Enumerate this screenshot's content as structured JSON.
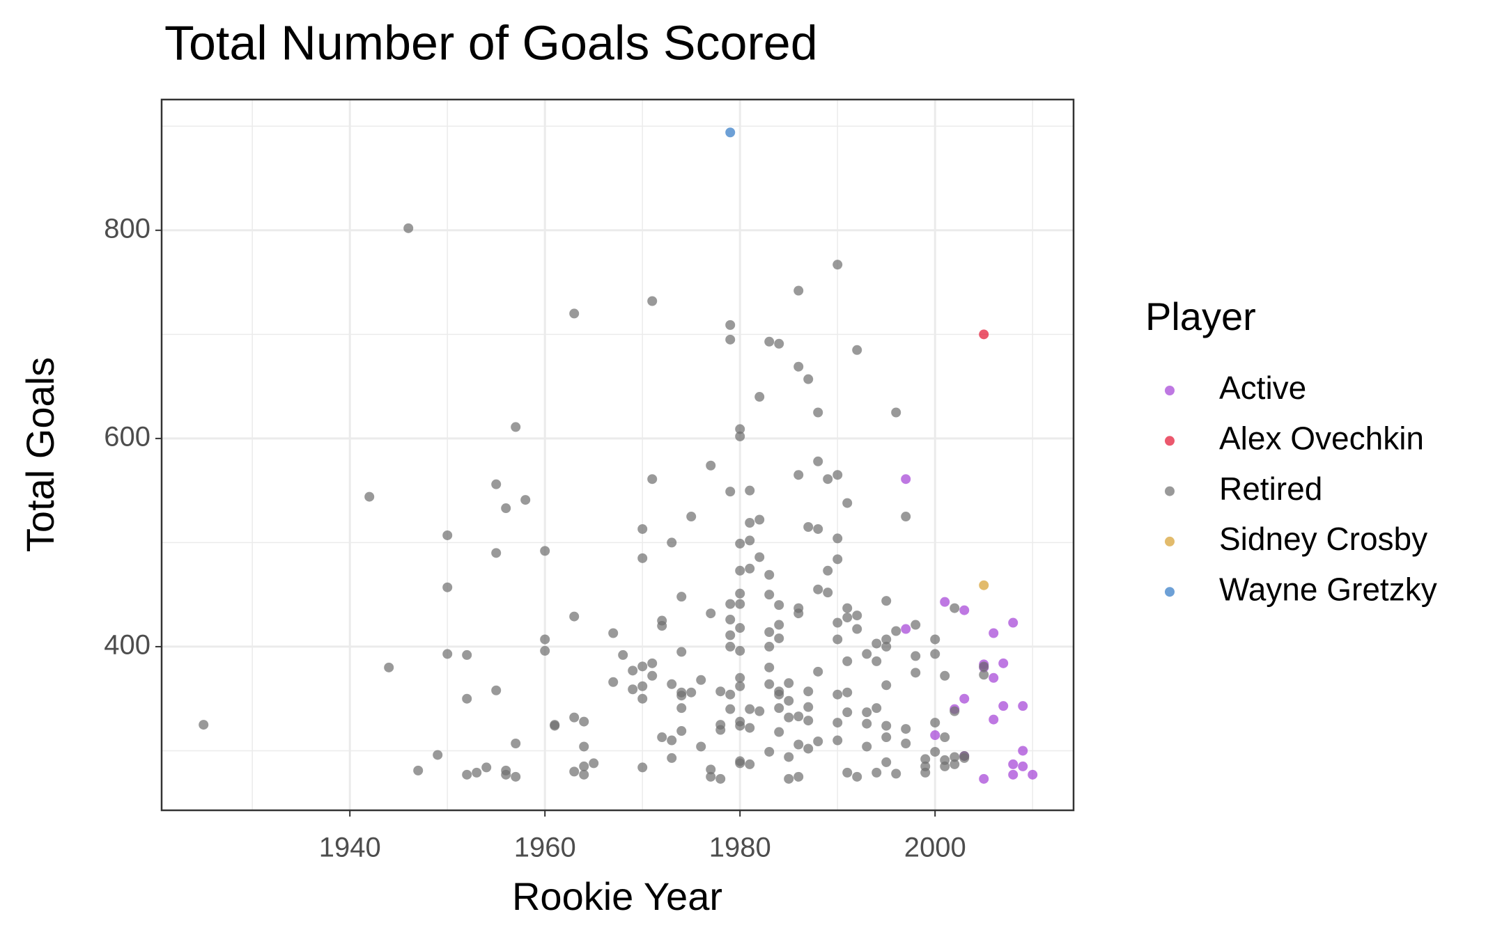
{
  "chart_data": {
    "type": "scatter",
    "title": "Total Number of Goals Scored",
    "x_label": "Rookie Year",
    "y_label": "Total Goals",
    "legend_title": "Player",
    "legend": "right",
    "grid": true,
    "xlim": [
      1920.7,
      2014.2
    ],
    "ylim": [
      242.8,
      925.6
    ],
    "xticks": [
      1940,
      1960,
      1980,
      2000
    ],
    "yticks": [
      400,
      600,
      800
    ],
    "x_minor_ticks": [
      1930,
      1950,
      1970,
      1990,
      2010
    ],
    "y_minor_ticks": [
      300,
      500,
      700,
      900
    ],
    "series": [
      {
        "name": "Active",
        "color": "#a33fd6",
        "x": [
          1997,
          1997,
          2001,
          2003,
          2000,
          2002,
          2003,
          2005,
          2005,
          2006,
          2006,
          2006,
          2007,
          2007,
          2008,
          2009,
          2009,
          2008,
          2008,
          2009,
          2010,
          2005,
          2003
        ],
        "y": [
          561,
          417,
          443,
          435,
          315,
          340,
          350,
          383,
          380,
          413,
          370,
          330,
          384,
          343,
          423,
          343,
          300,
          287,
          277,
          285,
          277,
          273,
          295
        ]
      },
      {
        "name": "Alex Ovechkin",
        "color": "#e3112f",
        "x": [
          2005
        ],
        "y": [
          700
        ]
      },
      {
        "name": "Retired",
        "color": "#6e6e6e",
        "x": [
          1925,
          1942,
          1944,
          1946,
          1947,
          1949,
          1950,
          1950,
          1950,
          1952,
          1952,
          1952,
          1953,
          1954,
          1955,
          1955,
          1955,
          1956,
          1956,
          1956,
          1957,
          1957,
          1957,
          1958,
          1960,
          1960,
          1960,
          1961,
          1961,
          1963,
          1963,
          1963,
          1963,
          1964,
          1964,
          1964,
          1964,
          1965,
          1967,
          1967,
          1968,
          1969,
          1969,
          1970,
          1970,
          1970,
          1970,
          1970,
          1970,
          1971,
          1971,
          1971,
          1971,
          1972,
          1972,
          1972,
          1973,
          1973,
          1973,
          1973,
          1974,
          1974,
          1974,
          1974,
          1974,
          1974,
          1975,
          1975,
          1976,
          1976,
          1977,
          1977,
          1977,
          1977,
          1978,
          1978,
          1978,
          1978,
          1979,
          1979,
          1979,
          1979,
          1979,
          1979,
          1979,
          1979,
          1979,
          1980,
          1980,
          1980,
          1980,
          1980,
          1980,
          1980,
          1980,
          1980,
          1980,
          1980,
          1980,
          1980,
          1980,
          1981,
          1981,
          1981,
          1981,
          1981,
          1981,
          1981,
          1982,
          1982,
          1982,
          1982,
          1983,
          1983,
          1983,
          1983,
          1983,
          1983,
          1983,
          1983,
          1984,
          1984,
          1984,
          1984,
          1984,
          1984,
          1984,
          1984,
          1985,
          1985,
          1985,
          1985,
          1985,
          1986,
          1986,
          1986,
          1986,
          1986,
          1986,
          1986,
          1986,
          1987,
          1987,
          1987,
          1987,
          1987,
          1987,
          1988,
          1988,
          1988,
          1988,
          1988,
          1988,
          1989,
          1989,
          1989,
          1990,
          1990,
          1990,
          1990,
          1990,
          1990,
          1990,
          1990,
          1990,
          1991,
          1991,
          1991,
          1991,
          1991,
          1991,
          1991,
          1992,
          1992,
          1992,
          1992,
          1993,
          1993,
          1993,
          1993,
          1994,
          1994,
          1994,
          1994,
          1995,
          1995,
          1995,
          1995,
          1995,
          1995,
          1995,
          1996,
          1996,
          1996,
          1997,
          1997,
          1997,
          1998,
          1998,
          1998,
          1999,
          1999,
          1999,
          2000,
          2000,
          2000,
          2000,
          2001,
          2001,
          2001,
          2001,
          2002,
          2002,
          2002,
          2002,
          2003,
          2003,
          2005,
          2005
        ],
        "y": [
          325,
          544,
          380,
          802,
          281,
          296,
          507,
          457,
          393,
          392,
          350,
          277,
          279,
          284,
          556,
          490,
          358,
          533,
          281,
          277,
          611,
          307,
          275,
          541,
          492,
          407,
          396,
          325,
          324,
          720,
          429,
          332,
          280,
          328,
          304,
          285,
          277,
          288,
          413,
          366,
          392,
          377,
          359,
          513,
          485,
          381,
          362,
          350,
          284,
          732,
          561,
          384,
          372,
          425,
          420,
          313,
          500,
          364,
          310,
          293,
          448,
          395,
          356,
          353,
          341,
          319,
          525,
          356,
          368,
          304,
          574,
          432,
          282,
          275,
          357,
          325,
          320,
          273,
          709,
          695,
          549,
          441,
          426,
          411,
          400,
          354,
          340,
          609,
          602,
          499,
          473,
          451,
          441,
          418,
          396,
          370,
          362,
          328,
          324,
          290,
          288,
          550,
          519,
          502,
          475,
          340,
          322,
          287,
          640,
          522,
          486,
          338,
          693,
          469,
          450,
          414,
          400,
          380,
          364,
          299,
          691,
          440,
          421,
          408,
          357,
          354,
          341,
          318,
          365,
          348,
          332,
          294,
          273,
          742,
          669,
          565,
          437,
          432,
          333,
          306,
          275,
          657,
          515,
          357,
          342,
          329,
          302,
          625,
          578,
          513,
          455,
          376,
          309,
          561,
          473,
          452,
          767,
          565,
          504,
          484,
          423,
          407,
          354,
          327,
          310,
          538,
          437,
          428,
          386,
          356,
          337,
          279,
          685,
          430,
          417,
          275,
          393,
          337,
          326,
          304,
          403,
          386,
          341,
          279,
          444,
          407,
          400,
          363,
          324,
          313,
          289,
          625,
          415,
          278,
          525,
          321,
          307,
          421,
          391,
          375,
          292,
          285,
          279,
          407,
          393,
          327,
          299,
          372,
          313,
          291,
          285,
          437,
          338,
          294,
          287,
          295,
          293,
          381,
          373
        ]
      },
      {
        "name": "Sidney Crosby",
        "color": "#d69e2e",
        "x": [
          2005
        ],
        "y": [
          459
        ]
      },
      {
        "name": "Wayne Gretzky",
        "color": "#2f78c4",
        "x": [
          1979
        ],
        "y": [
          894
        ]
      }
    ]
  }
}
